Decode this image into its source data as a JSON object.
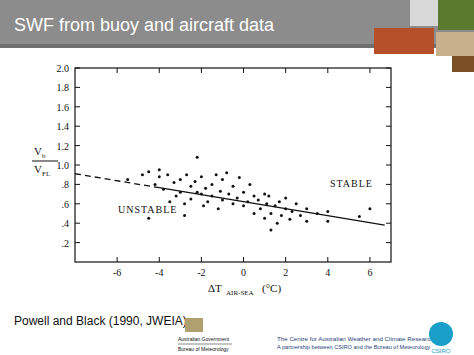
{
  "slide": {
    "title": "SWF from buoy and aircraft data",
    "citation": "Powell and Black (1990, JWEIA)",
    "gov_logo": [
      "Australian Government",
      "Bureau of Meteorology"
    ],
    "centre": "The Centre for Australian Weather and Climate Research",
    "partnership": "A partnership between CSIRO and the Bureau of Meteorology",
    "csiro": "CSIRO"
  },
  "chart_data": {
    "type": "scatter",
    "ylabel": {
      "numerator": {
        "text": "V",
        "sub": "b"
      },
      "denominator": {
        "text": "V",
        "sub": "FL"
      }
    },
    "xlabel": {
      "text": "ΔT",
      "sub": "AIR-SEA",
      "unit": "(°C)"
    },
    "annotations": [
      "STABLE",
      "UNSTABLE"
    ],
    "xlim": [
      -8,
      7
    ],
    "ylim": [
      0,
      2.0
    ],
    "xticks": [
      -6,
      -4,
      -2,
      0,
      2,
      4,
      6
    ],
    "yticks": [
      {
        "value": 0.2,
        "label": ".2"
      },
      {
        "value": 0.4,
        "label": ".4"
      },
      {
        "value": 0.6,
        "label": ".6"
      },
      {
        "value": 0.8,
        "label": ".8"
      },
      {
        "value": 1.0,
        "label": "1.0"
      },
      {
        "value": 1.2,
        "label": "1.2"
      },
      {
        "value": 1.4,
        "label": "1.4"
      },
      {
        "value": 1.6,
        "label": "1.6"
      },
      {
        "value": 1.8,
        "label": "1.8"
      },
      {
        "value": 2.0,
        "label": "2.0"
      }
    ],
    "grid": false,
    "series": [
      {
        "type": "scatter",
        "marker": "circle",
        "color": "#111111",
        "x": [
          -5.5,
          -4.8,
          -4.5,
          -4.2,
          -4,
          -4,
          -3.8,
          -3.6,
          -3.5,
          -3.3,
          -3.2,
          -3,
          -3,
          -2.8,
          -2.7,
          -2.5,
          -2.5,
          -2.3,
          -2.2,
          -2.2,
          -2,
          -2,
          -1.9,
          -1.8,
          -1.7,
          -1.5,
          -1.5,
          -1.3,
          -1.2,
          -1.1,
          -1,
          -1,
          -0.8,
          -0.7,
          -0.5,
          -0.5,
          -0.3,
          -0.2,
          0,
          0,
          0.2,
          0.3,
          0.5,
          0.5,
          0.7,
          0.8,
          1,
          1,
          1.1,
          1.2,
          1.3,
          1.5,
          1.6,
          1.7,
          1.8,
          2,
          2,
          2.2,
          2.3,
          2.5,
          2.7,
          3,
          3,
          3.5,
          4,
          4,
          5.5,
          6,
          -4.5,
          -2.8,
          1.3
        ],
        "values": [
          0.85,
          0.9,
          0.93,
          0.8,
          0.88,
          0.95,
          0.75,
          0.9,
          0.62,
          0.82,
          0.68,
          0.85,
          0.72,
          0.6,
          0.9,
          0.78,
          0.65,
          0.83,
          1.08,
          0.72,
          0.88,
          0.7,
          0.58,
          0.76,
          0.62,
          0.8,
          0.68,
          0.9,
          0.55,
          0.73,
          0.85,
          0.64,
          0.92,
          0.7,
          0.6,
          0.78,
          0.66,
          0.87,
          0.72,
          0.58,
          0.62,
          0.8,
          0.68,
          0.5,
          0.64,
          0.55,
          0.7,
          0.45,
          0.6,
          0.68,
          0.5,
          0.58,
          0.4,
          0.62,
          0.48,
          0.55,
          0.66,
          0.44,
          0.52,
          0.6,
          0.48,
          0.55,
          0.42,
          0.5,
          0.52,
          0.42,
          0.47,
          0.55,
          0.45,
          0.48,
          0.33
        ]
      },
      {
        "type": "line",
        "line_style": "dashed",
        "color": "#111111",
        "x": [
          -8,
          -4
        ],
        "values": [
          0.91,
          0.766
        ]
      },
      {
        "type": "line",
        "line_style": "solid",
        "color": "#111111",
        "x": [
          -4,
          6.7
        ],
        "values": [
          0.766,
          0.38
        ]
      }
    ]
  }
}
